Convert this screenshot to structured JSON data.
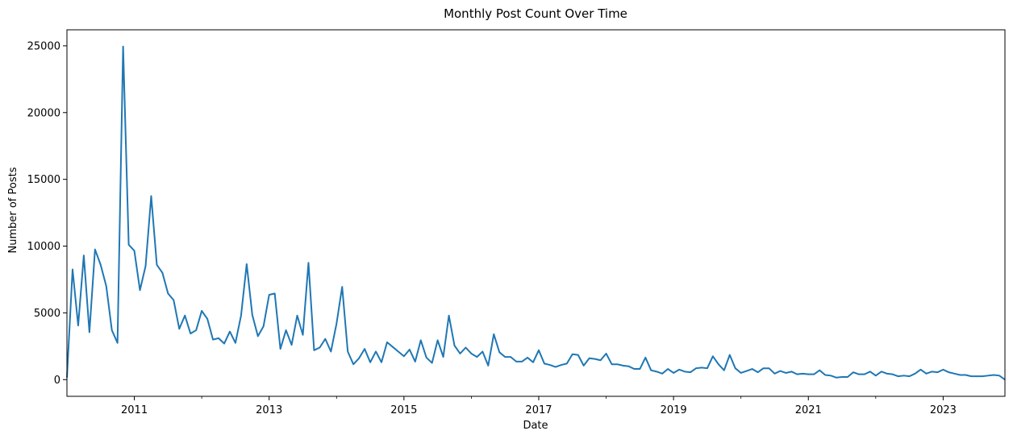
{
  "chart_data": {
    "type": "line",
    "title": "Monthly Post Count Over Time",
    "xlabel": "Date",
    "ylabel": "Number of Posts",
    "xlim": [
      "2010-01",
      "2023-12"
    ],
    "ylim": [
      -1250,
      26200
    ],
    "x_ticks": [
      "2011",
      "2013",
      "2015",
      "2017",
      "2019",
      "2021",
      "2023"
    ],
    "y_ticks": [
      0,
      5000,
      10000,
      15000,
      20000,
      25000
    ],
    "grid": false,
    "color": "#1f77b4",
    "series": [
      {
        "x": [
          "2010-01",
          "2010-02",
          "2010-03",
          "2010-04",
          "2010-05",
          "2010-06",
          "2010-07",
          "2010-08",
          "2010-09",
          "2010-10",
          "2010-11",
          "2010-12",
          "2011-01",
          "2011-02",
          "2011-03",
          "2011-04",
          "2011-05",
          "2011-06",
          "2011-07",
          "2011-08",
          "2011-09",
          "2011-10",
          "2011-11",
          "2011-12",
          "2012-01",
          "2012-02",
          "2012-03",
          "2012-04",
          "2012-05",
          "2012-06",
          "2012-07",
          "2012-08",
          "2012-09",
          "2012-10",
          "2012-11",
          "2012-12",
          "2013-01",
          "2013-02",
          "2013-03",
          "2013-04",
          "2013-05",
          "2013-06",
          "2013-07",
          "2013-08",
          "2013-09",
          "2013-10",
          "2013-11",
          "2013-12",
          "2014-01",
          "2014-02",
          "2014-03",
          "2014-04",
          "2014-05",
          "2014-06",
          "2014-07",
          "2014-08",
          "2014-09",
          "2014-10",
          "2014-11",
          "2014-12",
          "2015-01",
          "2015-02",
          "2015-03",
          "2015-04",
          "2015-05",
          "2015-06",
          "2015-07",
          "2015-08",
          "2015-09",
          "2015-10",
          "2015-11",
          "2015-12",
          "2016-01",
          "2016-02",
          "2016-03",
          "2016-04",
          "2016-05",
          "2016-06",
          "2016-07",
          "2016-08",
          "2016-09",
          "2016-10",
          "2016-11",
          "2016-12",
          "2017-01",
          "2017-02",
          "2017-03",
          "2017-04",
          "2017-05",
          "2017-06",
          "2017-07",
          "2017-08",
          "2017-09",
          "2017-10",
          "2017-11",
          "2017-12",
          "2018-01",
          "2018-02",
          "2018-03",
          "2018-04",
          "2018-05",
          "2018-06",
          "2018-07",
          "2018-08",
          "2018-09",
          "2018-10",
          "2018-11",
          "2018-12",
          "2019-01",
          "2019-02",
          "2019-03",
          "2019-04",
          "2019-05",
          "2019-06",
          "2019-07",
          "2019-08",
          "2019-09",
          "2019-10",
          "2019-11",
          "2019-12",
          "2020-01",
          "2020-02",
          "2020-03",
          "2020-04",
          "2020-05",
          "2020-06",
          "2020-07",
          "2020-08",
          "2020-09",
          "2020-10",
          "2020-11",
          "2020-12",
          "2021-01",
          "2021-02",
          "2021-03",
          "2021-04",
          "2021-05",
          "2021-06",
          "2021-07",
          "2021-08",
          "2021-09",
          "2021-10",
          "2021-11",
          "2021-12",
          "2022-01",
          "2022-02",
          "2022-03",
          "2022-04",
          "2022-05",
          "2022-06",
          "2022-07",
          "2022-08",
          "2022-09",
          "2022-10",
          "2022-11",
          "2022-12",
          "2023-01",
          "2023-02",
          "2023-03",
          "2023-04",
          "2023-05",
          "2023-06",
          "2023-07",
          "2023-08",
          "2023-09",
          "2023-10",
          "2023-11",
          "2023-12"
        ],
        "values": [
          150,
          8250,
          4050,
          9300,
          3550,
          9750,
          8600,
          7000,
          3700,
          2750,
          24950,
          10100,
          9650,
          6700,
          8500,
          13750,
          8600,
          8000,
          6450,
          5950,
          3800,
          4800,
          3450,
          3700,
          5150,
          4550,
          3000,
          3100,
          2700,
          3600,
          2750,
          4800,
          8650,
          4850,
          3250,
          4000,
          6350,
          6450,
          2300,
          3700,
          2600,
          4800,
          3350,
          8750,
          2200,
          2400,
          3050,
          2100,
          4200,
          6950,
          2100,
          1150,
          1600,
          2300,
          1300,
          2100,
          1300,
          2800,
          2450,
          2100,
          1750,
          2250,
          1350,
          2950,
          1650,
          1250,
          2950,
          1700,
          4800,
          2550,
          1950,
          2400,
          1950,
          1700,
          2100,
          1050,
          3400,
          2050,
          1700,
          1700,
          1350,
          1350,
          1650,
          1300,
          2200,
          1200,
          1100,
          950,
          1100,
          1200,
          1900,
          1850,
          1050,
          1600,
          1550,
          1450,
          1950,
          1150,
          1150,
          1050,
          1000,
          800,
          800,
          1650,
          700,
          600,
          450,
          800,
          500,
          750,
          600,
          550,
          850,
          900,
          850,
          1750,
          1150,
          700,
          1850,
          850,
          500,
          650,
          800,
          550,
          850,
          850,
          450,
          650,
          500,
          600,
          400,
          450,
          400,
          400,
          700,
          350,
          300,
          150,
          200,
          200,
          550,
          400,
          400,
          600,
          300,
          600,
          450,
          400,
          250,
          300,
          250,
          450,
          750,
          450,
          600,
          550,
          750,
          550,
          450,
          350,
          350,
          250,
          250,
          250,
          300,
          350,
          300,
          0
        ]
      }
    ]
  }
}
